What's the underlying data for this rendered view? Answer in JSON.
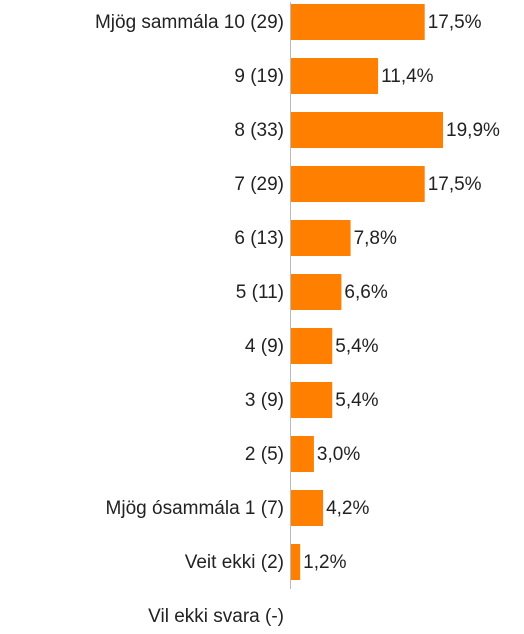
{
  "chart_data": {
    "type": "bar",
    "orientation": "horizontal",
    "categories": [
      "Mjög sammála 10 (29)",
      "9 (19)",
      "8 (33)",
      "7 (29)",
      "6 (13)",
      "5 (11)",
      "4 (9)",
      "3 (9)",
      "2 (5)",
      "Mjög ósammála 1 (7)",
      "Veit ekki (2)",
      "Vil ekki svara (-)"
    ],
    "values": [
      17.5,
      11.4,
      19.9,
      17.5,
      7.8,
      6.6,
      5.4,
      5.4,
      3.0,
      4.2,
      1.2,
      null
    ],
    "value_labels": [
      "17,5%",
      "11,4%",
      "19,9%",
      "17,5%",
      "7,8%",
      "6,6%",
      "5,4%",
      "5,4%",
      "3,0%",
      "4,2%",
      "1,2%",
      null
    ],
    "color": "#ff8000"
  }
}
